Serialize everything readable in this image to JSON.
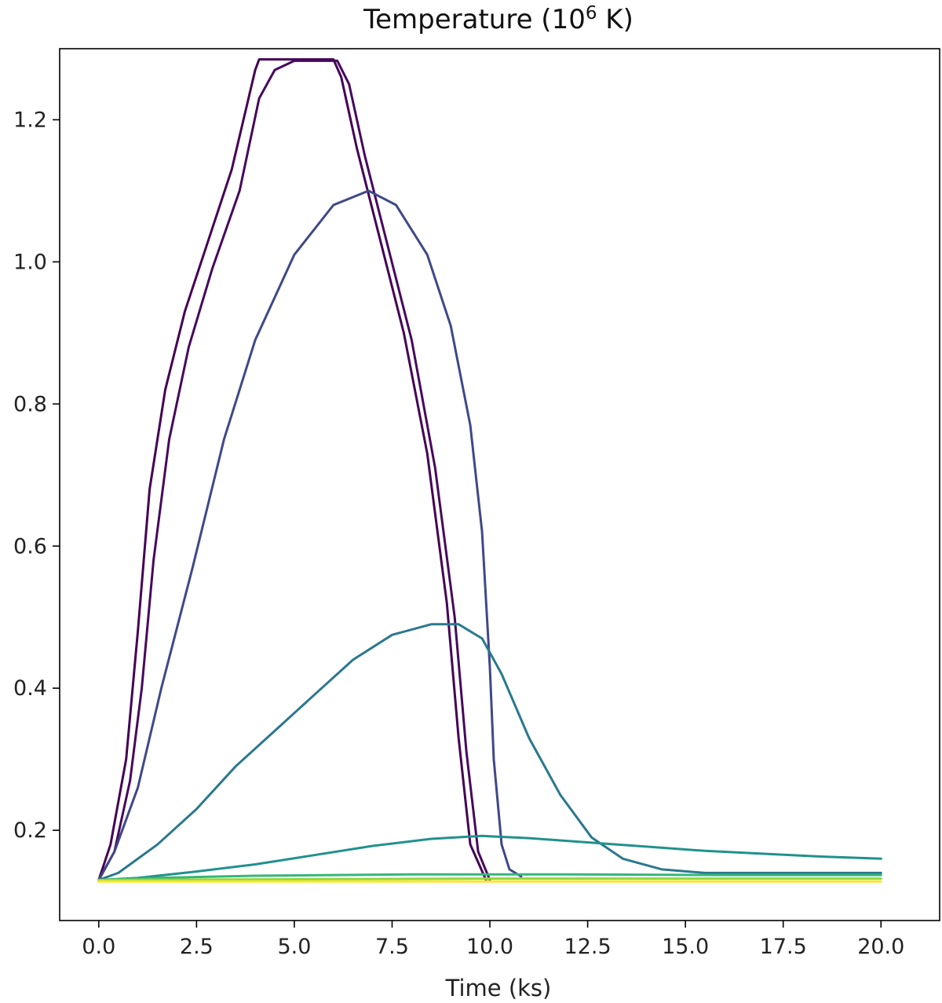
{
  "chart_data": {
    "type": "line",
    "title": "Temperature (10",
    "title_superscript": "6",
    "title_suffix": " K)",
    "xlabel": "Time (ks)",
    "ylabel": "",
    "xlim": [
      -1.0,
      21.5
    ],
    "ylim": [
      0.073,
      1.3
    ],
    "xticks": [
      0.0,
      2.5,
      5.0,
      7.5,
      10.0,
      12.5,
      15.0,
      17.5,
      20.0
    ],
    "xtick_labels": [
      "0.0",
      "2.5",
      "5.0",
      "7.5",
      "10.0",
      "12.5",
      "15.0",
      "17.5",
      "20.0"
    ],
    "yticks": [
      0.2,
      0.4,
      0.6,
      0.8,
      1.0,
      1.2
    ],
    "ytick_labels": [
      "0.2",
      "0.4",
      "0.6",
      "0.8",
      "1.0",
      "1.2"
    ],
    "grid": false,
    "legend": "none",
    "series": [
      {
        "color": "#440154",
        "points": [
          [
            0,
            0.13
          ],
          [
            0.3,
            0.18
          ],
          [
            0.7,
            0.3
          ],
          [
            1.0,
            0.48
          ],
          [
            1.3,
            0.68
          ],
          [
            1.7,
            0.82
          ],
          [
            2.2,
            0.93
          ],
          [
            2.8,
            1.03
          ],
          [
            3.4,
            1.13
          ],
          [
            4.0,
            1.27
          ],
          [
            4.1,
            1.285
          ],
          [
            6.0,
            1.285
          ],
          [
            6.2,
            1.26
          ],
          [
            6.6,
            1.16
          ],
          [
            7.2,
            1.03
          ],
          [
            7.8,
            0.9
          ],
          [
            8.4,
            0.73
          ],
          [
            8.9,
            0.52
          ],
          [
            9.2,
            0.33
          ],
          [
            9.5,
            0.18
          ],
          [
            9.9,
            0.13
          ]
        ]
      },
      {
        "color": "#46085c",
        "points": [
          [
            0,
            0.13
          ],
          [
            0.4,
            0.17
          ],
          [
            0.8,
            0.27
          ],
          [
            1.1,
            0.4
          ],
          [
            1.4,
            0.58
          ],
          [
            1.8,
            0.75
          ],
          [
            2.3,
            0.88
          ],
          [
            2.9,
            0.99
          ],
          [
            3.6,
            1.1
          ],
          [
            4.1,
            1.23
          ],
          [
            4.5,
            1.27
          ],
          [
            5.0,
            1.283
          ],
          [
            6.1,
            1.283
          ],
          [
            6.4,
            1.25
          ],
          [
            6.8,
            1.15
          ],
          [
            7.4,
            1.02
          ],
          [
            8.0,
            0.89
          ],
          [
            8.6,
            0.71
          ],
          [
            9.1,
            0.5
          ],
          [
            9.4,
            0.31
          ],
          [
            9.7,
            0.17
          ],
          [
            10.0,
            0.13
          ]
        ]
      },
      {
        "color": "#3f4889",
        "points": [
          [
            0,
            0.13
          ],
          [
            0.4,
            0.17
          ],
          [
            1.0,
            0.26
          ],
          [
            1.6,
            0.4
          ],
          [
            2.4,
            0.57
          ],
          [
            3.2,
            0.75
          ],
          [
            4.0,
            0.89
          ],
          [
            5.0,
            1.01
          ],
          [
            6.0,
            1.08
          ],
          [
            6.9,
            1.1
          ],
          [
            7.6,
            1.08
          ],
          [
            8.4,
            1.01
          ],
          [
            9.0,
            0.91
          ],
          [
            9.5,
            0.77
          ],
          [
            9.8,
            0.62
          ],
          [
            10.0,
            0.43
          ],
          [
            10.1,
            0.3
          ],
          [
            10.3,
            0.18
          ],
          [
            10.5,
            0.145
          ],
          [
            10.8,
            0.135
          ]
        ]
      },
      {
        "color": "#2a788e",
        "points": [
          [
            0,
            0.13
          ],
          [
            0.5,
            0.14
          ],
          [
            1.5,
            0.18
          ],
          [
            2.5,
            0.23
          ],
          [
            3.5,
            0.29
          ],
          [
            4.5,
            0.34
          ],
          [
            5.5,
            0.39
          ],
          [
            6.5,
            0.44
          ],
          [
            7.5,
            0.475
          ],
          [
            8.5,
            0.49
          ],
          [
            9.2,
            0.49
          ],
          [
            9.8,
            0.47
          ],
          [
            10.3,
            0.42
          ],
          [
            11.0,
            0.33
          ],
          [
            11.8,
            0.25
          ],
          [
            12.6,
            0.19
          ],
          [
            13.4,
            0.16
          ],
          [
            14.4,
            0.145
          ],
          [
            15.5,
            0.14
          ],
          [
            20.0,
            0.14
          ]
        ]
      },
      {
        "color": "#21918c",
        "points": [
          [
            0,
            0.13
          ],
          [
            1.0,
            0.133
          ],
          [
            2.5,
            0.142
          ],
          [
            4.0,
            0.152
          ],
          [
            5.5,
            0.165
          ],
          [
            7.0,
            0.178
          ],
          [
            8.5,
            0.188
          ],
          [
            9.8,
            0.192
          ],
          [
            11.0,
            0.189
          ],
          [
            12.5,
            0.183
          ],
          [
            14.0,
            0.177
          ],
          [
            15.5,
            0.171
          ],
          [
            17.0,
            0.167
          ],
          [
            18.5,
            0.163
          ],
          [
            20.0,
            0.16
          ]
        ]
      },
      {
        "color": "#35b779",
        "points": [
          [
            0,
            0.13
          ],
          [
            1.5,
            0.133
          ],
          [
            4.0,
            0.136
          ],
          [
            8.0,
            0.138
          ],
          [
            12.0,
            0.138
          ],
          [
            16.0,
            0.137
          ],
          [
            20.0,
            0.137
          ]
        ]
      },
      {
        "color": "#90d743",
        "points": [
          [
            0,
            0.13
          ],
          [
            5.0,
            0.131
          ],
          [
            10.0,
            0.132
          ],
          [
            15.0,
            0.132
          ],
          [
            20.0,
            0.132
          ]
        ]
      },
      {
        "color": "#fde725",
        "points": [
          [
            0,
            0.128
          ],
          [
            10.0,
            0.128
          ],
          [
            20.0,
            0.128
          ]
        ]
      }
    ]
  }
}
